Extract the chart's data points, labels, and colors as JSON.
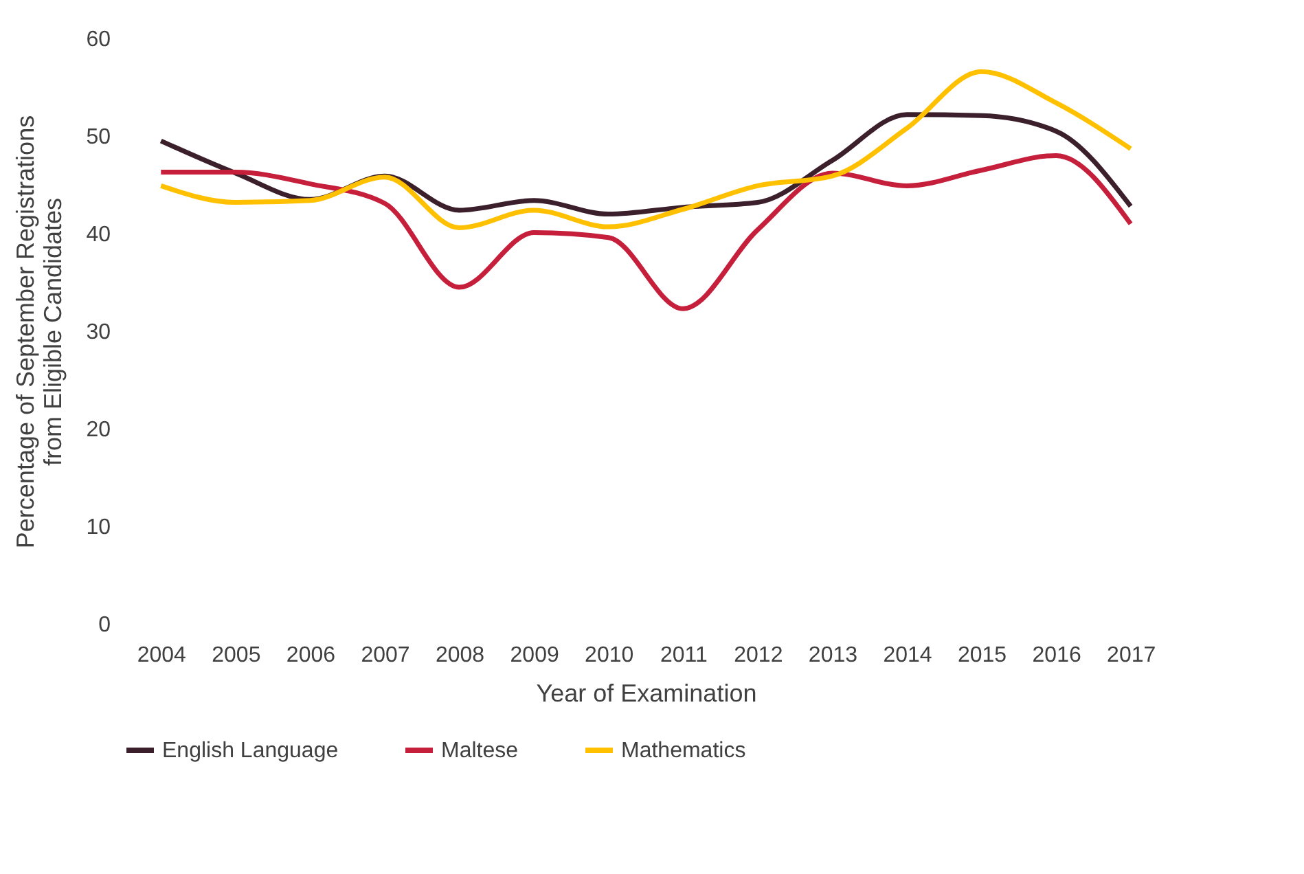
{
  "chart_data": {
    "type": "line",
    "xlabel": "Year of Examination",
    "ylabel": "Percentage of September Registrations from Eligible Candidates",
    "categories": [
      "2004",
      "2005",
      "2006",
      "2007",
      "2008",
      "2009",
      "2010",
      "2011",
      "2012",
      "2013",
      "2014",
      "2015",
      "2016",
      "2017"
    ],
    "series": [
      {
        "name": "English Language",
        "color": "#3b1f2b",
        "values": [
          49.5,
          46.2,
          43.5,
          45.9,
          42.4,
          43.4,
          42.0,
          42.7,
          43.2,
          47.5,
          52.2,
          52.1,
          50.5,
          42.8
        ]
      },
      {
        "name": "Maltese",
        "color": "#c51f3c",
        "values": [
          46.3,
          46.3,
          45.1,
          43.1,
          34.5,
          40.1,
          39.6,
          32.3,
          40.4,
          46.2,
          44.9,
          46.5,
          48.0,
          41.0
        ]
      },
      {
        "name": "Mathematics",
        "color": "#ffc000",
        "values": [
          44.9,
          43.2,
          43.4,
          45.8,
          40.6,
          42.4,
          40.7,
          42.5,
          44.9,
          45.9,
          50.8,
          56.6,
          53.4,
          48.7
        ]
      }
    ],
    "ylim": [
      0,
      60
    ],
    "yticks": [
      0,
      10,
      20,
      30,
      40,
      50,
      60
    ],
    "grid": false,
    "legend": "bottom",
    "marker": "none",
    "line_style": "solid"
  }
}
